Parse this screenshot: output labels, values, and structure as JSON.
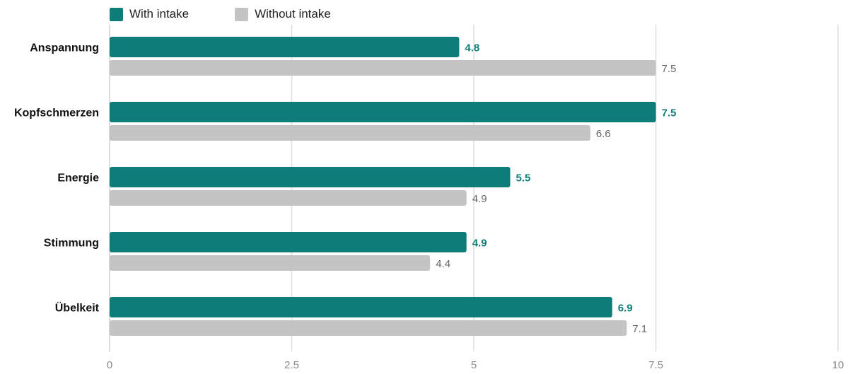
{
  "colors": {
    "with": "#0e7c79",
    "without": "#c4c4c4",
    "grid": "#dedede",
    "tick_text": "#8a8a8a",
    "value_without": "#666666"
  },
  "chart_data": {
    "type": "bar",
    "orientation": "horizontal",
    "categories": [
      "Anspannung",
      "Kopfschmerzen",
      "Energie",
      "Stimmung",
      "Übelkeit"
    ],
    "series": [
      {
        "name": "With intake",
        "values": [
          4.8,
          7.5,
          5.5,
          4.9,
          6.9
        ]
      },
      {
        "name": "Without intake",
        "values": [
          7.5,
          6.6,
          4.9,
          4.4,
          7.1
        ]
      }
    ],
    "xlim": [
      0,
      10
    ],
    "xticks": [
      "0",
      "2.5",
      "5",
      "7.5",
      "10"
    ],
    "xtick_values": [
      0,
      2.5,
      5,
      7.5,
      10
    ],
    "grid": true,
    "legend_position": "top-left"
  }
}
